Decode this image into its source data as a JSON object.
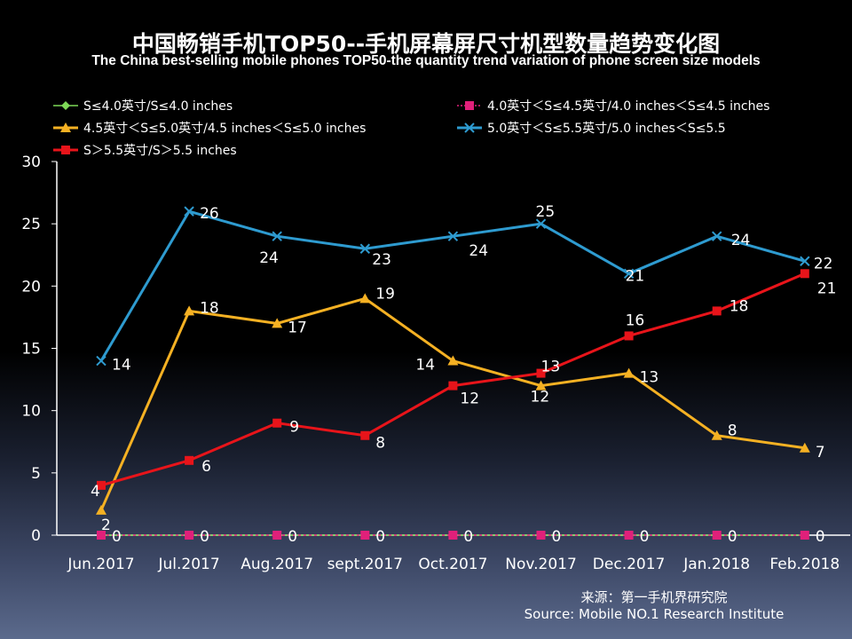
{
  "chart_data": {
    "type": "line",
    "title": "中国畅销手机TOP50--手机屏幕屏尺寸机型数量趋势变化图",
    "subtitle": "The China best-selling mobile phones TOP50-the quantity trend variation of phone screen size models",
    "categories": [
      "Jun.2017",
      "Jul.2017",
      "Aug.2017",
      "sept.2017",
      "Oct.2017",
      "Nov.2017",
      "Dec.2017",
      "Jan.2018",
      "Feb.2018"
    ],
    "ylim": [
      0,
      30
    ],
    "yticks": [
      0,
      5,
      10,
      15,
      20,
      25,
      30
    ],
    "legend_position": "top",
    "series": [
      {
        "name": "S≤4.0英寸/S≤4.0 inches",
        "color": "#7ed957",
        "marker": "diamond",
        "values": [
          0,
          0,
          0,
          0,
          0,
          0,
          0,
          0,
          0
        ]
      },
      {
        "name": "4.0英寸＜S≤4.5英寸/4.0 inches＜S≤4.5 inches",
        "color": "#e0207a",
        "marker": "square",
        "values": [
          0,
          0,
          0,
          0,
          0,
          0,
          0,
          0,
          0
        ]
      },
      {
        "name": "4.5英寸＜S≤5.0英寸/4.5 inches＜S≤5.0 inches",
        "color": "#f5b123",
        "marker": "triangle",
        "values": [
          2,
          18,
          17,
          19,
          14,
          12,
          13,
          8,
          7
        ]
      },
      {
        "name": "5.0英寸＜S≤5.5英寸/5.0 inches＜S≤5.5",
        "color": "#2e9bd0",
        "marker": "x",
        "values": [
          14,
          26,
          24,
          23,
          24,
          25,
          21,
          24,
          22
        ]
      },
      {
        "name": "S＞5.5英寸/S＞5.5 inches",
        "color": "#e8141a",
        "marker": "square",
        "values": [
          4,
          6,
          9,
          8,
          12,
          13,
          16,
          18,
          21
        ]
      }
    ]
  },
  "source": {
    "cn": "来源：第一手机界研究院",
    "en": "Source: Mobile NO.1 Research Institute"
  }
}
